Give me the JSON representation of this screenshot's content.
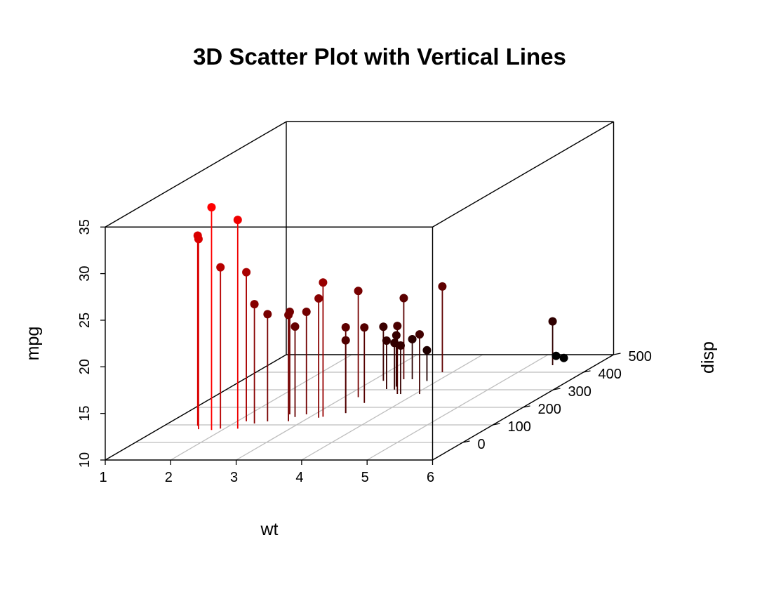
{
  "chart_data": {
    "type": "scatter",
    "title": "3D Scatter Plot with Vertical Lines",
    "xlabel": "wt",
    "ylabel": "disp",
    "zlabel": "mpg",
    "xlim": [
      1,
      6
    ],
    "ylim": [
      -100,
      500
    ],
    "zlim": [
      10,
      35
    ],
    "x_ticks": [
      1,
      2,
      3,
      4,
      5,
      6
    ],
    "y_ticks": [
      0,
      100,
      200,
      300,
      400,
      500
    ],
    "z_ticks": [
      10,
      15,
      20,
      25,
      30,
      35
    ],
    "grid": true,
    "vertical_lines": true,
    "colors": {
      "low": "#000000",
      "high": "#FF0000",
      "grid": "#BEBEBE",
      "box": "#000000"
    },
    "points": [
      {
        "wt": 2.62,
        "disp": 160,
        "mpg": 21.0
      },
      {
        "wt": 2.875,
        "disp": 160,
        "mpg": 21.0
      },
      {
        "wt": 2.32,
        "disp": 108,
        "mpg": 22.8
      },
      {
        "wt": 3.215,
        "disp": 258,
        "mpg": 21.4
      },
      {
        "wt": 3.44,
        "disp": 360,
        "mpg": 18.7
      },
      {
        "wt": 3.46,
        "disp": 225,
        "mpg": 18.1
      },
      {
        "wt": 3.57,
        "disp": 360,
        "mpg": 14.3
      },
      {
        "wt": 3.19,
        "disp": 146.7,
        "mpg": 24.4
      },
      {
        "wt": 3.15,
        "disp": 140.8,
        "mpg": 22.8
      },
      {
        "wt": 3.44,
        "disp": 167.6,
        "mpg": 19.2
      },
      {
        "wt": 3.44,
        "disp": 167.6,
        "mpg": 17.8
      },
      {
        "wt": 4.07,
        "disp": 275.8,
        "mpg": 16.4
      },
      {
        "wt": 3.73,
        "disp": 275.8,
        "mpg": 17.3
      },
      {
        "wt": 3.78,
        "disp": 275.8,
        "mpg": 15.2
      },
      {
        "wt": 5.25,
        "disp": 472,
        "mpg": 10.4
      },
      {
        "wt": 5.424,
        "disp": 460,
        "mpg": 10.4
      },
      {
        "wt": 5.345,
        "disp": 440,
        "mpg": 14.7
      },
      {
        "wt": 2.2,
        "disp": 78.7,
        "mpg": 32.4
      },
      {
        "wt": 1.615,
        "disp": 75.7,
        "mpg": 30.4
      },
      {
        "wt": 1.835,
        "disp": 71.1,
        "mpg": 33.9
      },
      {
        "wt": 2.465,
        "disp": 120.1,
        "mpg": 21.5
      },
      {
        "wt": 3.52,
        "disp": 318,
        "mpg": 15.5
      },
      {
        "wt": 3.435,
        "disp": 304,
        "mpg": 15.2
      },
      {
        "wt": 3.84,
        "disp": 350,
        "mpg": 13.3
      },
      {
        "wt": 3.845,
        "disp": 400,
        "mpg": 19.2
      },
      {
        "wt": 1.935,
        "disp": 79,
        "mpg": 27.3
      },
      {
        "wt": 2.14,
        "disp": 120.3,
        "mpg": 26.0
      },
      {
        "wt": 1.513,
        "disp": 95.1,
        "mpg": 30.4
      },
      {
        "wt": 3.17,
        "disp": 351,
        "mpg": 15.8
      },
      {
        "wt": 2.77,
        "disp": 145,
        "mpg": 19.7
      },
      {
        "wt": 3.57,
        "disp": 301,
        "mpg": 15.0
      },
      {
        "wt": 2.78,
        "disp": 121,
        "mpg": 21.4
      }
    ]
  }
}
